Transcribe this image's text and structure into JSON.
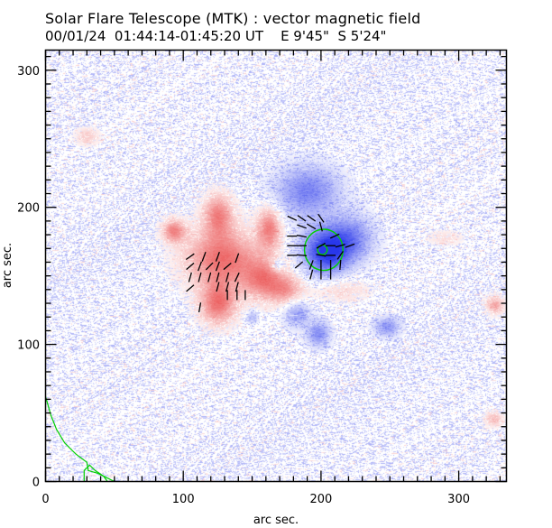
{
  "header": {
    "title": "Solar Flare Telescope (MTK) : vector magnetic field",
    "date": "00/01/24",
    "time_range": "01:44:14-01:45:20 UT",
    "position_ew": "E 9'45\"",
    "position_ns": "S 5'24\""
  },
  "chart_data": {
    "type": "heatmap",
    "title": "Solar Flare Telescope (MTK) : vector magnetic field",
    "subtitle": "00/01/24  01:44:14-01:45:20 UT    E 9'45\"  S 5'24\"",
    "xlabel": "arc sec.",
    "ylabel": "arc sec.",
    "xlim": [
      0,
      335
    ],
    "ylim": [
      0,
      315
    ],
    "x_major_ticks": [
      0,
      100,
      200,
      300
    ],
    "y_major_ticks": [
      0,
      100,
      200,
      300
    ],
    "x_tick_labels": [
      "0",
      "100",
      "200",
      "300"
    ],
    "y_tick_labels": [
      "0",
      "100",
      "200",
      "300"
    ],
    "minor_tick_step": 10,
    "colors": {
      "positive_polarity": "#f06060",
      "negative_polarity": "#3040f0",
      "contour": "#00d000",
      "vector": "#000000"
    },
    "polarity_regions": [
      {
        "name": "main-positive-region",
        "sign": "positive",
        "x": 128,
        "y": 163,
        "rx": 24,
        "ry": 20,
        "strength": 0.85
      },
      {
        "name": "positive-west-lobe",
        "sign": "positive",
        "x": 93,
        "y": 183,
        "rx": 8,
        "ry": 8,
        "strength": 0.7
      },
      {
        "name": "positive-north-tongue",
        "sign": "positive",
        "x": 125,
        "y": 195,
        "rx": 10,
        "ry": 14,
        "strength": 0.7
      },
      {
        "name": "positive-south-lobe",
        "sign": "positive",
        "x": 125,
        "y": 130,
        "rx": 12,
        "ry": 14,
        "strength": 0.8
      },
      {
        "name": "positive-east-lobe",
        "sign": "positive",
        "x": 158,
        "y": 148,
        "rx": 14,
        "ry": 14,
        "strength": 0.7
      },
      {
        "name": "positive-arc-north",
        "sign": "positive",
        "x": 162,
        "y": 185,
        "rx": 8,
        "ry": 14,
        "strength": 0.75
      },
      {
        "name": "positive-arc-south",
        "sign": "positive",
        "x": 175,
        "y": 140,
        "rx": 12,
        "ry": 10,
        "strength": 0.55
      },
      {
        "name": "positive-se-weak",
        "sign": "positive",
        "x": 215,
        "y": 140,
        "rx": 18,
        "ry": 8,
        "strength": 0.25
      },
      {
        "name": "positive-nw-weak",
        "sign": "positive",
        "x": 30,
        "y": 252,
        "rx": 8,
        "ry": 6,
        "strength": 0.3
      },
      {
        "name": "positive-east-edge-1",
        "sign": "positive",
        "x": 326,
        "y": 129,
        "rx": 6,
        "ry": 6,
        "strength": 0.55
      },
      {
        "name": "positive-east-edge-2",
        "sign": "positive",
        "x": 325,
        "y": 46,
        "rx": 6,
        "ry": 5,
        "strength": 0.4
      },
      {
        "name": "positive-ne-weak",
        "sign": "positive",
        "x": 290,
        "y": 178,
        "rx": 12,
        "ry": 5,
        "strength": 0.2
      },
      {
        "name": "main-negative-spot",
        "sign": "negative",
        "x": 203,
        "y": 168,
        "rx": 16,
        "ry": 16,
        "strength": 1.0
      },
      {
        "name": "negative-plage-north",
        "sign": "negative",
        "x": 190,
        "y": 212,
        "rx": 22,
        "ry": 18,
        "strength": 0.6
      },
      {
        "name": "negative-plage-east",
        "sign": "negative",
        "x": 222,
        "y": 178,
        "rx": 16,
        "ry": 16,
        "strength": 0.55
      },
      {
        "name": "negative-small-hole",
        "sign": "negative",
        "x": 168,
        "y": 158,
        "rx": 4,
        "ry": 4,
        "strength": 0.45
      },
      {
        "name": "negative-south-1",
        "sign": "negative",
        "x": 182,
        "y": 123,
        "rx": 9,
        "ry": 10,
        "strength": 0.45
      },
      {
        "name": "negative-south-2",
        "sign": "negative",
        "x": 198,
        "y": 108,
        "rx": 8,
        "ry": 9,
        "strength": 0.55
      },
      {
        "name": "negative-south-east",
        "sign": "negative",
        "x": 248,
        "y": 113,
        "rx": 9,
        "ry": 7,
        "strength": 0.5
      },
      {
        "name": "negative-gap-spot",
        "sign": "negative",
        "x": 150,
        "y": 120,
        "rx": 4,
        "ry": 4,
        "strength": 0.4
      }
    ],
    "contours": [
      {
        "name": "umbra-outer-contour",
        "center": [
          202,
          169
        ],
        "radius": [
          14,
          15
        ]
      },
      {
        "name": "umbra-inner-contour",
        "center": [
          201,
          169
        ],
        "radius": [
          3.5,
          3.5
        ]
      }
    ],
    "contour_paths": [
      {
        "name": "limb-contour-1",
        "points": [
          [
            0,
            62
          ],
          [
            4,
            48
          ],
          [
            8,
            38
          ],
          [
            14,
            28
          ],
          [
            22,
            20
          ],
          [
            30,
            14
          ],
          [
            31,
            8
          ],
          [
            38,
            6
          ],
          [
            44,
            3
          ],
          [
            48,
            1
          ],
          [
            50,
            0
          ]
        ]
      },
      {
        "name": "limb-contour-2",
        "points": [
          [
            28,
            0
          ],
          [
            28,
            8
          ],
          [
            32,
            12
          ],
          [
            36,
            8
          ],
          [
            42,
            4
          ],
          [
            45,
            0
          ]
        ]
      }
    ],
    "vectors": [
      {
        "x": 105,
        "y": 164,
        "angle": 35
      },
      {
        "x": 115,
        "y": 164,
        "angle": 70
      },
      {
        "x": 125,
        "y": 164,
        "angle": 70
      },
      {
        "x": 105,
        "y": 157,
        "angle": 40
      },
      {
        "x": 112,
        "y": 157,
        "angle": 70
      },
      {
        "x": 119,
        "y": 157,
        "angle": 45
      },
      {
        "x": 125,
        "y": 157,
        "angle": 70
      },
      {
        "x": 132,
        "y": 157,
        "angle": 40
      },
      {
        "x": 105,
        "y": 149,
        "angle": 75
      },
      {
        "x": 112,
        "y": 149,
        "angle": 75
      },
      {
        "x": 119,
        "y": 149,
        "angle": 75
      },
      {
        "x": 125,
        "y": 149,
        "angle": 75
      },
      {
        "x": 132,
        "y": 149,
        "angle": 75
      },
      {
        "x": 139,
        "y": 149,
        "angle": 65
      },
      {
        "x": 125,
        "y": 142,
        "angle": 75
      },
      {
        "x": 132,
        "y": 142,
        "angle": 75
      },
      {
        "x": 139,
        "y": 142,
        "angle": 75
      },
      {
        "x": 105,
        "y": 141,
        "angle": 40
      },
      {
        "x": 132,
        "y": 136,
        "angle": 90
      },
      {
        "x": 139,
        "y": 136,
        "angle": 90
      },
      {
        "x": 145,
        "y": 136,
        "angle": 90
      },
      {
        "x": 112,
        "y": 127,
        "angle": 80
      },
      {
        "x": 139,
        "y": 163,
        "angle": 70
      },
      {
        "x": 179,
        "y": 192,
        "angle": -25
      },
      {
        "x": 186,
        "y": 192,
        "angle": -35
      },
      {
        "x": 193,
        "y": 192,
        "angle": -35
      },
      {
        "x": 200,
        "y": 192,
        "angle": -55
      },
      {
        "x": 186,
        "y": 186,
        "angle": -20
      },
      {
        "x": 193,
        "y": 186,
        "angle": -30
      },
      {
        "x": 200,
        "y": 186,
        "angle": -75
      },
      {
        "x": 179,
        "y": 179,
        "angle": 0
      },
      {
        "x": 186,
        "y": 179,
        "angle": -10
      },
      {
        "x": 210,
        "y": 179,
        "angle": 25
      },
      {
        "x": 179,
        "y": 172,
        "angle": 0
      },
      {
        "x": 186,
        "y": 172,
        "angle": 0
      },
      {
        "x": 200,
        "y": 172,
        "angle": 30
      },
      {
        "x": 207,
        "y": 172,
        "angle": 0
      },
      {
        "x": 214,
        "y": 172,
        "angle": 15
      },
      {
        "x": 221,
        "y": 172,
        "angle": 20
      },
      {
        "x": 179,
        "y": 165,
        "angle": 0
      },
      {
        "x": 186,
        "y": 165,
        "angle": -5
      },
      {
        "x": 200,
        "y": 165,
        "angle": -10
      },
      {
        "x": 207,
        "y": 165,
        "angle": 0
      },
      {
        "x": 214,
        "y": 165,
        "angle": 55
      },
      {
        "x": 184,
        "y": 158,
        "angle": 40
      },
      {
        "x": 193,
        "y": 158,
        "angle": 70
      },
      {
        "x": 200,
        "y": 158,
        "angle": 90
      },
      {
        "x": 207,
        "y": 158,
        "angle": 90
      },
      {
        "x": 214,
        "y": 158,
        "angle": 85
      },
      {
        "x": 193,
        "y": 151,
        "angle": 75
      },
      {
        "x": 200,
        "y": 151,
        "angle": 90
      },
      {
        "x": 207,
        "y": 151,
        "angle": 90
      }
    ],
    "legend": "none",
    "grid": false
  }
}
